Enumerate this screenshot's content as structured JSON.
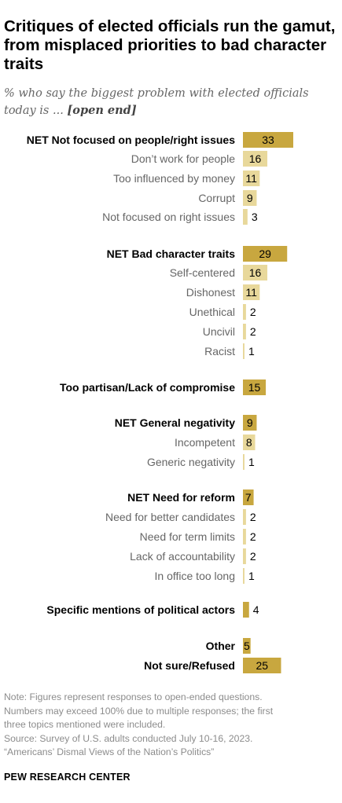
{
  "title": "Critiques of elected officials run the gamut, from misplaced priorities to bad character traits",
  "subtitle": "% who say the biggest problem with elected officials today is ...",
  "subtitle_emphasis": "[open end]",
  "colors": {
    "net_bar": "#c8a73f",
    "sub_bar": "#e8d89b",
    "net_label": "#000000",
    "sub_label": "#666666",
    "notes": "#8c8c8c"
  },
  "chart_data": {
    "type": "bar",
    "orientation": "horizontal",
    "xlim": [
      0,
      35
    ],
    "categories": [
      {
        "label": "NET Not focused on people/right issues",
        "value": 33,
        "level": "net"
      },
      {
        "label": "Don’t work for people",
        "value": 16,
        "level": "sub"
      },
      {
        "label": "Too influenced by money",
        "value": 11,
        "level": "sub"
      },
      {
        "label": "Corrupt",
        "value": 9,
        "level": "sub"
      },
      {
        "label": "Not focused on right issues",
        "value": 3,
        "level": "sub"
      },
      {
        "label": "NET Bad character traits",
        "value": 29,
        "level": "net"
      },
      {
        "label": "Self-centered",
        "value": 16,
        "level": "sub"
      },
      {
        "label": "Dishonest",
        "value": 11,
        "level": "sub"
      },
      {
        "label": "Unethical",
        "value": 2,
        "level": "sub"
      },
      {
        "label": "Uncivil",
        "value": 2,
        "level": "sub"
      },
      {
        "label": "Racist",
        "value": 1,
        "level": "sub"
      },
      {
        "label": "Too partisan/Lack of compromise",
        "value": 15,
        "level": "net"
      },
      {
        "label": "NET General negativity",
        "value": 9,
        "level": "net"
      },
      {
        "label": "Incompetent",
        "value": 8,
        "level": "sub"
      },
      {
        "label": "Generic negativity",
        "value": 1,
        "level": "sub"
      },
      {
        "label": "NET Need for reform",
        "value": 7,
        "level": "net"
      },
      {
        "label": "Need for better candidates",
        "value": 2,
        "level": "sub"
      },
      {
        "label": "Need for term limits",
        "value": 2,
        "level": "sub"
      },
      {
        "label": "Lack of accountability",
        "value": 2,
        "level": "sub"
      },
      {
        "label": "In office too long",
        "value": 1,
        "level": "sub"
      },
      {
        "label": "Specific mentions of political actors",
        "value": 4,
        "level": "net"
      },
      {
        "label": "Other",
        "value": 5,
        "level": "net"
      },
      {
        "label": "Not sure/Refused",
        "value": 25,
        "level": "net"
      }
    ]
  },
  "notes": [
    "Note: Figures represent responses to open-ended questions.",
    "Numbers may exceed 100% due to multiple responses; the first",
    "three topics mentioned were included.",
    "Source: Survey of U.S. adults conducted July 10-16, 2023.",
    "“Americans’ Dismal Views of the Nation’s Politics”"
  ],
  "source_org": "PEW RESEARCH CENTER"
}
